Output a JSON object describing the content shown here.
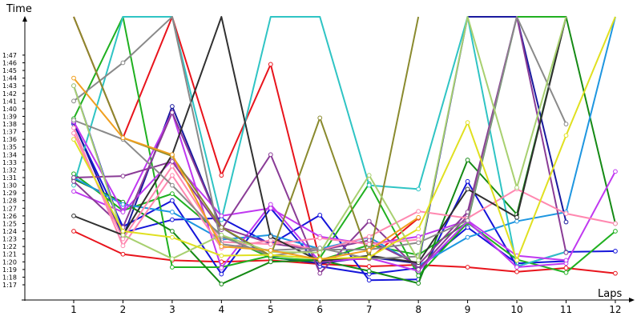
{
  "chart_data": {
    "type": "line",
    "xlabel": "Laps",
    "ylabel": "Time",
    "x": [
      1,
      2,
      3,
      4,
      5,
      6,
      7,
      8,
      9,
      10,
      11,
      12
    ],
    "ylim_seconds": [
      75,
      110
    ],
    "ytick_labels": [
      "1:17",
      "1:18",
      "1:19",
      "1:20",
      "1:21",
      "1:22",
      "1:23",
      "1:24",
      "1:25",
      "1:26",
      "1:27",
      "1:28",
      "1:29",
      "1:30",
      "1:31",
      "1:32",
      "1:33",
      "1:34",
      "1:35",
      "1:36",
      "1:37",
      "1:38",
      "1:39",
      "1:40",
      "1:41",
      "1:42",
      "1:43",
      "1:44",
      "1:45",
      "1:46",
      "1:47"
    ],
    "grid": false,
    "legend": "none",
    "series": [
      {
        "color": "#e8141c",
        "values": [
          84,
          81,
          80.2,
          80,
          80.2,
          79.7,
          79.4,
          79.6,
          79.3,
          78.7,
          79.2,
          78.5
        ]
      },
      {
        "color": "#e8141c",
        "values": [
          112,
          96.2,
          112,
          91.3,
          105.8,
          80.2,
          80.4,
          85.7,
          null,
          null,
          null,
          null
        ]
      },
      {
        "color": "#1515d9",
        "values": [
          103,
          83.8,
          85.5,
          85.7,
          82.3,
          86.1,
          77.6,
          77.7,
          90.5,
          79.4,
          81.3,
          81.4
        ]
      },
      {
        "color": "#1515d9",
        "values": [
          98,
          84.6,
          88,
          78.4,
          87,
          79.4,
          78.4,
          79.2,
          84.5,
          79.8,
          80.1,
          null
        ]
      },
      {
        "color": "#1a1a9e",
        "values": [
          98.2,
          83.2,
          100.3,
          84.5,
          80.6,
          79.8,
          80.6,
          79.8,
          112,
          112,
          85.2,
          null
        ]
      },
      {
        "color": "#20b020",
        "values": [
          98.7,
          112,
          79.3,
          79.3,
          80.8,
          80.5,
          90.2,
          78.2,
          85.1,
          80.3,
          78.6,
          84
        ]
      },
      {
        "color": "#20b020",
        "values": [
          91.5,
          86.7,
          88.9,
          83.5,
          80.5,
          80.2,
          82.2,
          80.9,
          85.2,
          112,
          112,
          null
        ]
      },
      {
        "color": "#158a15",
        "values": [
          90.8,
          87.8,
          84,
          77.1,
          80,
          80.2,
          78.8,
          77.2,
          93.3,
          86.2,
          112,
          85
        ]
      },
      {
        "color": "#2fc4c4",
        "values": [
          90,
          112,
          112,
          85.5,
          112,
          112,
          90,
          89.5,
          112,
          79.4,
          81.3,
          null
        ]
      },
      {
        "color": "#1e96e0",
        "values": [
          91,
          87.5,
          86.5,
          82.9,
          83.5,
          81.7,
          83.2,
          79.5,
          83.2,
          85.3,
          86.5,
          112
        ]
      },
      {
        "color": "#c038f0",
        "values": [
          98.3,
          86.6,
          99.5,
          79.2,
          87.5,
          80,
          80.5,
          78.8,
          85.3,
          79.3,
          79.8,
          91.8
        ]
      },
      {
        "color": "#c038f0",
        "values": [
          89.2,
          86.5,
          93.3,
          86,
          87,
          83.3,
          82.3,
          83.3,
          85.4,
          80.8,
          80.2,
          null
        ]
      },
      {
        "color": "#8a3c96",
        "values": [
          91,
          91.2,
          93.1,
          84.2,
          94,
          78.5,
          85.3,
          79,
          86,
          112,
          81.2,
          null
        ]
      },
      {
        "color": "#8a3c96",
        "values": [
          90.5,
          84.5,
          99.5,
          84.5,
          82.4,
          81.5,
          82.8,
          79.6,
          86.5,
          112,
          null,
          null
        ]
      },
      {
        "color": "#ff88b0",
        "values": [
          97.5,
          82.1,
          91.3,
          81.8,
          82.8,
          81.5,
          83.3,
          86.6,
          85.7,
          89.5,
          86.3,
          85
        ]
      },
      {
        "color": "#ff88b0",
        "values": [
          96.8,
          83,
          92.5,
          82.6,
          82.3,
          83.1,
          82.3,
          82.9,
          null,
          null,
          null,
          null
        ]
      },
      {
        "color": "#303030",
        "values": [
          86,
          83.5,
          94,
          112,
          83.3,
          80.1,
          80.8,
          79.9,
          89.5,
          85.8,
          112,
          null
        ]
      },
      {
        "color": "#8a8a8a",
        "values": [
          98.5,
          96,
          90,
          83.3,
          80.8,
          81.6,
          81.6,
          82.5,
          85.4,
          112,
          98,
          null
        ]
      },
      {
        "color": "#8a8a8a",
        "values": [
          101,
          106,
          112,
          82.3,
          81.5,
          81.8,
          80.4,
          80.7,
          null,
          null,
          null,
          null
        ]
      },
      {
        "color": "#8a8a2e",
        "values": [
          112,
          96.2,
          93.8,
          84.5,
          80.8,
          98.8,
          80.5,
          112,
          null,
          null,
          null,
          null
        ]
      },
      {
        "color": "#a8d070",
        "values": [
          103,
          83.5,
          80.4,
          83.5,
          81.3,
          81.2,
          91.3,
          80.2,
          112,
          89.7,
          112,
          null
        ]
      },
      {
        "color": "#e0e020",
        "values": [
          96,
          84,
          83.2,
          80.8,
          80.9,
          80.4,
          80.6,
          84.3,
          98.2,
          80.2,
          96.5,
          112
        ]
      },
      {
        "color": "#f0a020",
        "values": [
          104,
          96.2,
          94,
          82,
          81.5,
          80.3,
          81.5,
          85.8,
          null,
          null,
          null,
          null
        ]
      }
    ]
  }
}
